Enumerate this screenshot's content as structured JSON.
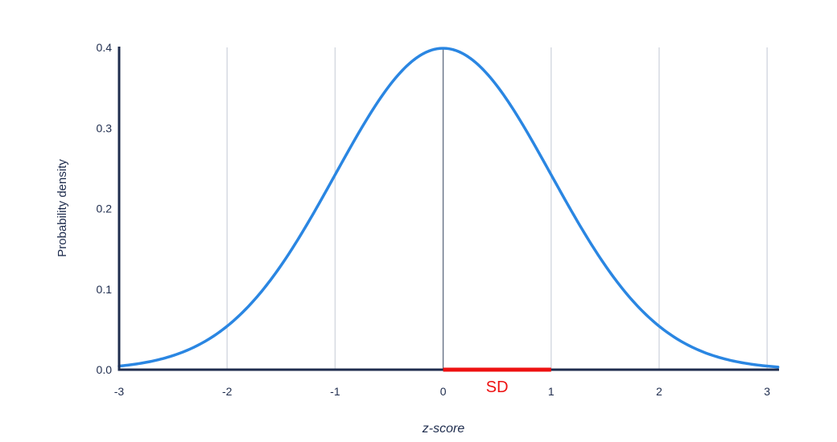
{
  "chart_data": {
    "type": "line",
    "xlabel": "z-score",
    "ylabel": "Probability density",
    "xlim": [
      -3,
      3.1
    ],
    "ylim": [
      0,
      0.4
    ],
    "x_ticks": [
      -3,
      -2,
      -1,
      0,
      1,
      2,
      3
    ],
    "x_tick_labels": [
      "-3",
      "-2",
      "-1",
      "0",
      "1",
      "2",
      "3"
    ],
    "y_ticks": [
      0,
      0.1,
      0.2,
      0.3,
      0.4
    ],
    "y_tick_labels": [
      "0.0",
      "0.1",
      "0.2",
      "0.3",
      "0.4"
    ],
    "grid": "vertical",
    "series": [
      {
        "curve": "standard normal density",
        "color": "#2a86e2",
        "x": [
          -3,
          -2.5,
          -2,
          -1.5,
          -1,
          -0.5,
          0,
          0.5,
          1,
          1.5,
          2,
          2.5,
          3
        ],
        "y": [
          0.0044,
          0.0175,
          0.054,
          0.1295,
          0.242,
          0.3521,
          0.3989,
          0.3521,
          0.242,
          0.1295,
          0.054,
          0.0175,
          0.0044
        ]
      }
    ],
    "mean_line": {
      "x": 0,
      "color": "#5f6b80"
    },
    "annotations": [
      {
        "text": "SD",
        "x_start": 0,
        "x_end": 1,
        "color": "#ee1111"
      }
    ],
    "colors": {
      "axis": "#1f2d4e",
      "grid": "#d6dae2"
    }
  }
}
